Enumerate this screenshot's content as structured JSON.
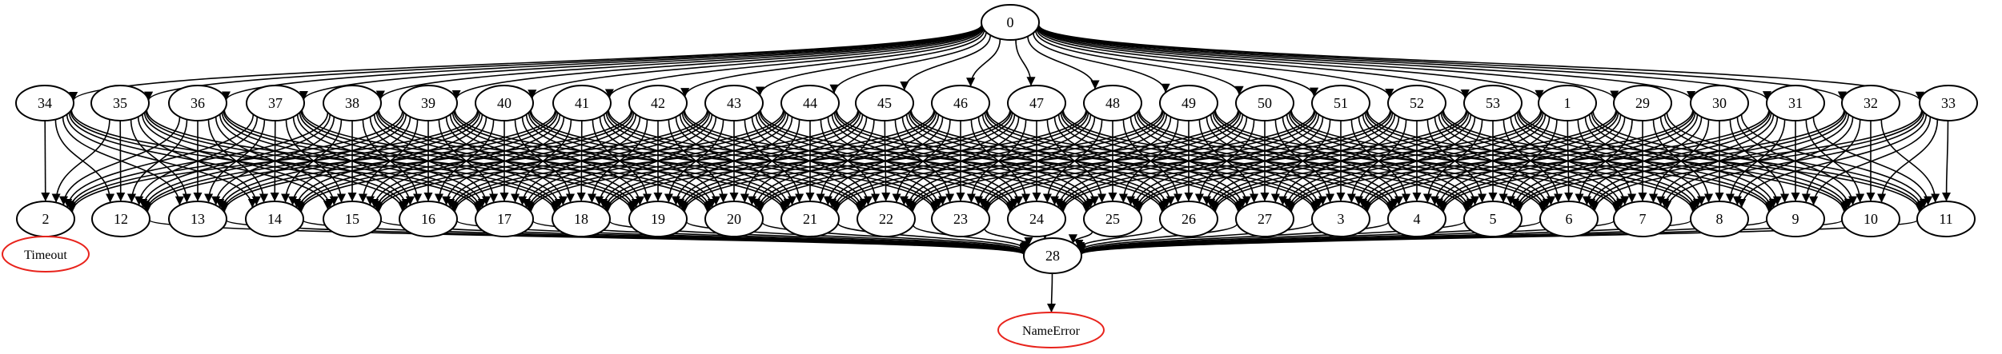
{
  "graph": {
    "colors": {
      "node_stroke": "#000000",
      "error_stroke": "#e8231c",
      "edge": "#000000"
    },
    "nodes": [
      {
        "id": "0",
        "label": "0"
      },
      {
        "id": "34",
        "label": "34"
      },
      {
        "id": "35",
        "label": "35"
      },
      {
        "id": "36",
        "label": "36"
      },
      {
        "id": "37",
        "label": "37"
      },
      {
        "id": "38",
        "label": "38"
      },
      {
        "id": "39",
        "label": "39"
      },
      {
        "id": "40",
        "label": "40"
      },
      {
        "id": "41",
        "label": "41"
      },
      {
        "id": "42",
        "label": "42"
      },
      {
        "id": "43",
        "label": "43"
      },
      {
        "id": "44",
        "label": "44"
      },
      {
        "id": "45",
        "label": "45"
      },
      {
        "id": "46",
        "label": "46"
      },
      {
        "id": "47",
        "label": "47"
      },
      {
        "id": "48",
        "label": "48"
      },
      {
        "id": "49",
        "label": "49"
      },
      {
        "id": "50",
        "label": "50"
      },
      {
        "id": "51",
        "label": "51"
      },
      {
        "id": "52",
        "label": "52"
      },
      {
        "id": "53",
        "label": "53"
      },
      {
        "id": "1",
        "label": "1"
      },
      {
        "id": "29",
        "label": "29"
      },
      {
        "id": "30",
        "label": "30"
      },
      {
        "id": "31",
        "label": "31"
      },
      {
        "id": "32",
        "label": "32"
      },
      {
        "id": "33",
        "label": "33"
      },
      {
        "id": "2",
        "label": "2"
      },
      {
        "id": "12",
        "label": "12"
      },
      {
        "id": "13",
        "label": "13"
      },
      {
        "id": "14",
        "label": "14"
      },
      {
        "id": "15",
        "label": "15"
      },
      {
        "id": "16",
        "label": "16"
      },
      {
        "id": "17",
        "label": "17"
      },
      {
        "id": "18",
        "label": "18"
      },
      {
        "id": "19",
        "label": "19"
      },
      {
        "id": "20",
        "label": "20"
      },
      {
        "id": "21",
        "label": "21"
      },
      {
        "id": "22",
        "label": "22"
      },
      {
        "id": "23",
        "label": "23"
      },
      {
        "id": "24",
        "label": "24"
      },
      {
        "id": "25",
        "label": "25"
      },
      {
        "id": "26",
        "label": "26"
      },
      {
        "id": "27",
        "label": "27"
      },
      {
        "id": "3",
        "label": "3"
      },
      {
        "id": "4",
        "label": "4"
      },
      {
        "id": "5",
        "label": "5"
      },
      {
        "id": "6",
        "label": "6"
      },
      {
        "id": "7",
        "label": "7"
      },
      {
        "id": "8",
        "label": "8"
      },
      {
        "id": "9",
        "label": "9"
      },
      {
        "id": "10",
        "label": "10"
      },
      {
        "id": "11",
        "label": "11"
      },
      {
        "id": "28",
        "label": "28"
      },
      {
        "id": "timeout",
        "label": "Timeout",
        "error": true
      },
      {
        "id": "nameerror",
        "label": "NameError",
        "error": true
      }
    ],
    "edges": [
      [
        "0",
        "34"
      ],
      [
        "0",
        "35"
      ],
      [
        "0",
        "36"
      ],
      [
        "0",
        "37"
      ],
      [
        "0",
        "38"
      ],
      [
        "0",
        "39"
      ],
      [
        "0",
        "40"
      ],
      [
        "0",
        "41"
      ],
      [
        "0",
        "42"
      ],
      [
        "0",
        "43"
      ],
      [
        "0",
        "44"
      ],
      [
        "0",
        "45"
      ],
      [
        "0",
        "46"
      ],
      [
        "0",
        "47"
      ],
      [
        "0",
        "48"
      ],
      [
        "0",
        "49"
      ],
      [
        "0",
        "50"
      ],
      [
        "0",
        "51"
      ],
      [
        "0",
        "52"
      ],
      [
        "0",
        "53"
      ],
      [
        "0",
        "1"
      ],
      [
        "0",
        "29"
      ],
      [
        "0",
        "30"
      ],
      [
        "0",
        "31"
      ],
      [
        "0",
        "32"
      ],
      [
        "0",
        "33"
      ],
      [
        "2",
        "timeout"
      ],
      [
        "12",
        "28"
      ],
      [
        "13",
        "28"
      ],
      [
        "14",
        "28"
      ],
      [
        "15",
        "28"
      ],
      [
        "16",
        "28"
      ],
      [
        "17",
        "28"
      ],
      [
        "18",
        "28"
      ],
      [
        "19",
        "28"
      ],
      [
        "20",
        "28"
      ],
      [
        "21",
        "28"
      ],
      [
        "22",
        "28"
      ],
      [
        "23",
        "28"
      ],
      [
        "24",
        "28"
      ],
      [
        "25",
        "28"
      ],
      [
        "26",
        "28"
      ],
      [
        "27",
        "28"
      ],
      [
        "3",
        "28"
      ],
      [
        "4",
        "28"
      ],
      [
        "5",
        "28"
      ],
      [
        "6",
        "28"
      ],
      [
        "7",
        "28"
      ],
      [
        "8",
        "28"
      ],
      [
        "9",
        "28"
      ],
      [
        "10",
        "28"
      ],
      [
        "11",
        "28"
      ],
      [
        "28",
        "nameerror"
      ]
    ],
    "dense_edges": {
      "from": [
        "34",
        "35",
        "36",
        "37",
        "38",
        "39",
        "40",
        "41",
        "42",
        "43",
        "44",
        "45",
        "46",
        "47",
        "48",
        "49",
        "50",
        "51",
        "52",
        "53",
        "1",
        "29",
        "30",
        "31",
        "32",
        "33"
      ],
      "to": [
        "2",
        "12",
        "13",
        "14",
        "15",
        "16",
        "17",
        "18",
        "19",
        "20",
        "21",
        "22",
        "23",
        "24",
        "25",
        "26",
        "27",
        "3",
        "4",
        "5",
        "6",
        "7",
        "8",
        "9",
        "10",
        "11"
      ]
    }
  }
}
